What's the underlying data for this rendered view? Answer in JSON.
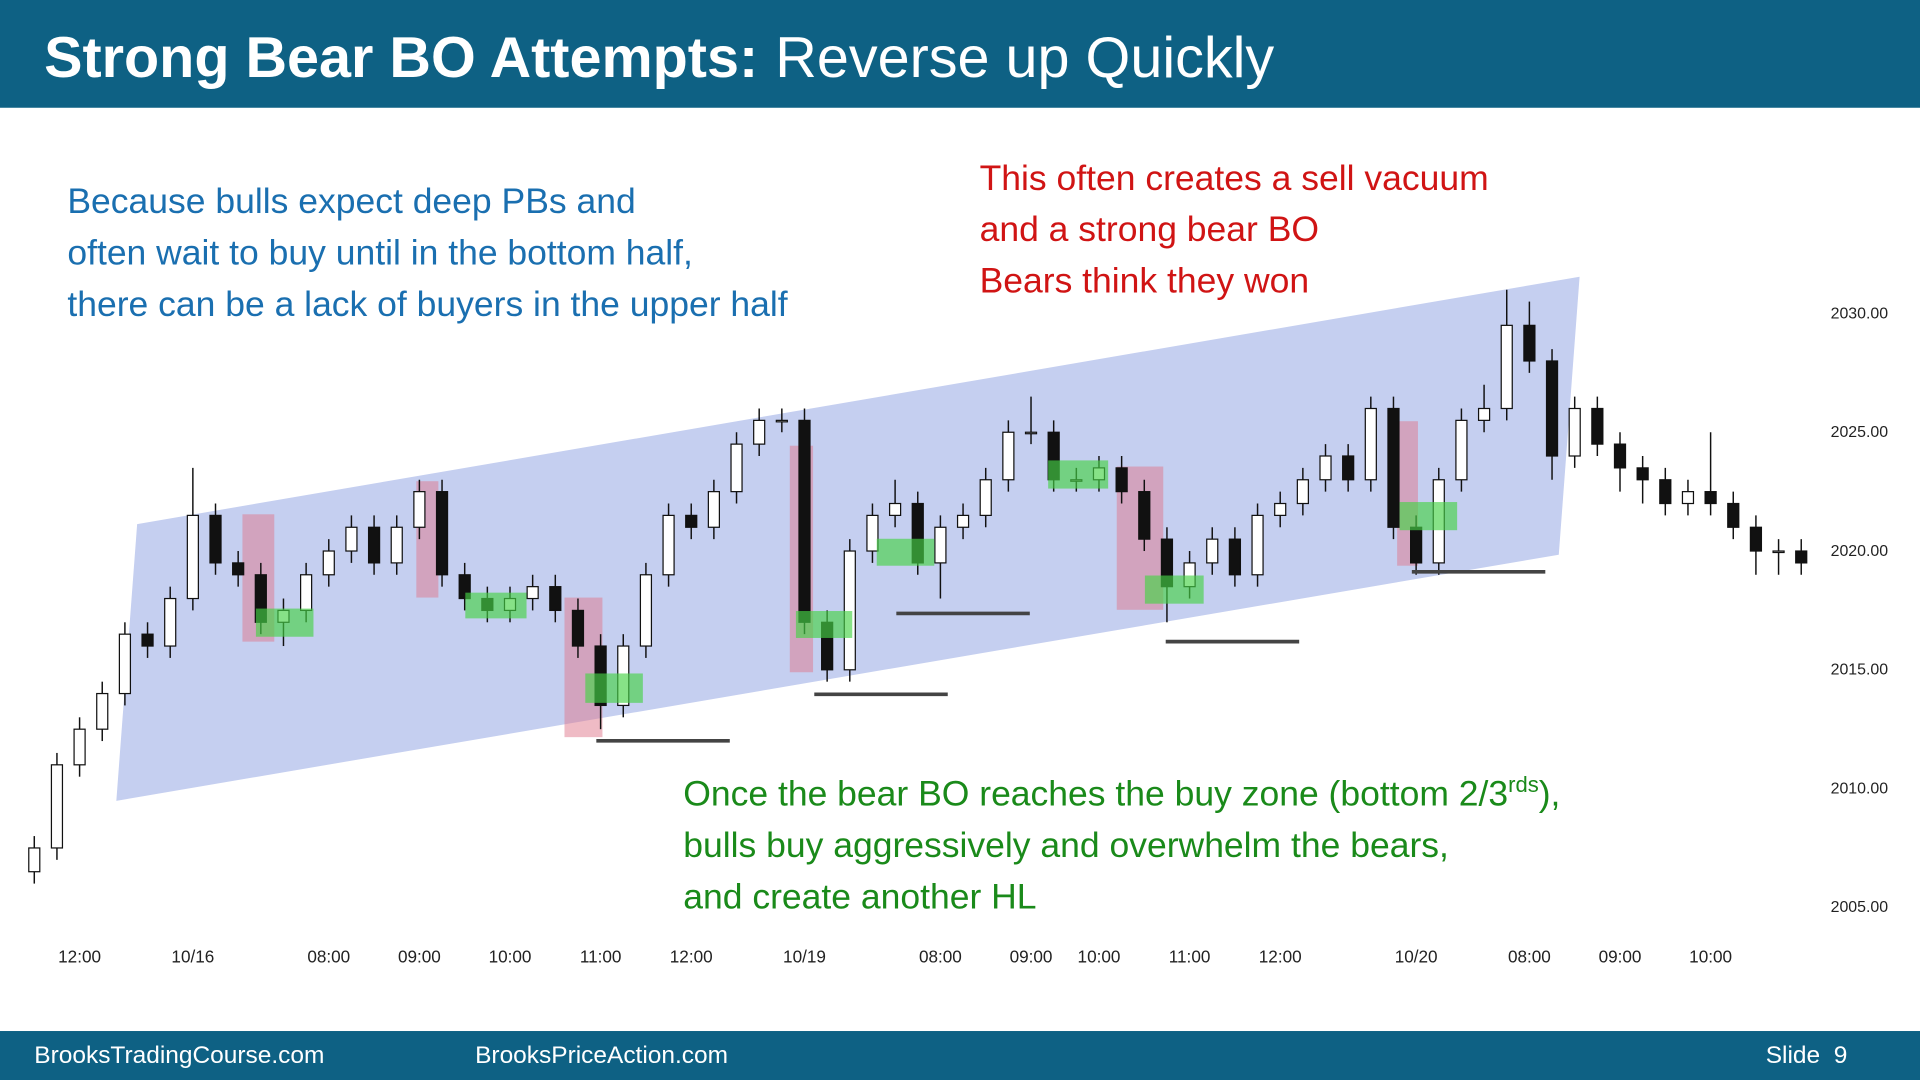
{
  "header": {
    "title_bold": "Strong Bear BO Attempts:",
    "title_rest": "Reverse up Quickly"
  },
  "annotations": {
    "blue": [
      "Because bulls expect deep PBs and",
      "often wait to buy until in the bottom half,",
      "there can be a lack of buyers in the upper half"
    ],
    "red": [
      "This often creates a sell vacuum",
      "and a strong bear BO",
      "Bears think they won"
    ],
    "green_first": {
      "text": "Once the bear BO reaches the buy zone (bottom 2/3",
      "sup": "rds",
      "tail": "),"
    },
    "green": [
      "bulls buy aggressively and overwhelm the bears,",
      "and create another HL"
    ]
  },
  "footer": {
    "left": "BrooksTradingCourse.com",
    "middle": "BrooksPriceAction.com",
    "right": "Slide  9"
  },
  "chart_data": {
    "type": "candlestick",
    "open": [
      2006.5,
      2007.5,
      2011,
      2012.5,
      2014,
      2016.5,
      2016,
      2018,
      2021.5,
      2019.5,
      2019,
      2017,
      2017.5,
      2019,
      2020,
      2021,
      2019.5,
      2021,
      2022.5,
      2019,
      2018,
      2017.5,
      2018,
      2018.5,
      2017.5,
      2016,
      2013.5,
      2016,
      2019,
      2021.5,
      2021,
      2022.5,
      2024.5,
      2025.5,
      2025.5,
      2017,
      2015,
      2020,
      2021.5,
      2022,
      2019.5,
      2021,
      2021.5,
      2023,
      2025,
      2025,
      2023,
      2023,
      2023.5,
      2022.5,
      2020.5,
      2018.5,
      2019.5,
      2020.5,
      2019,
      2021.5,
      2022,
      2023,
      2024,
      2023,
      2026,
      2021,
      2019.5,
      2023,
      2025.5,
      2026,
      2029.5,
      2028,
      2024,
      2026,
      2024.5,
      2023.5,
      2023,
      2022,
      2022.5,
      2022,
      2021,
      2020,
      2020
    ],
    "high": [
      2008,
      2011.5,
      2013,
      2014.5,
      2017,
      2017,
      2018.5,
      2023.5,
      2022,
      2020,
      2019.5,
      2018,
      2019.5,
      2020.5,
      2021.5,
      2021.5,
      2021.5,
      2023,
      2023,
      2019.5,
      2018.5,
      2018.5,
      2019,
      2019,
      2018,
      2016.5,
      2016.5,
      2019.5,
      2022,
      2022,
      2023,
      2025,
      2026,
      2026,
      2026,
      2017.5,
      2020.5,
      2022,
      2023,
      2022.5,
      2021.5,
      2022,
      2023.5,
      2025.5,
      2026.5,
      2025.5,
      2023.5,
      2024,
      2024,
      2023,
      2021,
      2020,
      2021,
      2021,
      2022,
      2022.5,
      2023.5,
      2024.5,
      2024.5,
      2026.5,
      2026.5,
      2021.5,
      2023.5,
      2026,
      2027,
      2031,
      2030.5,
      2028.5,
      2026.5,
      2026.5,
      2025,
      2024,
      2023.5,
      2023,
      2025,
      2022.5,
      2021.5,
      2020.5,
      2020.5
    ],
    "low": [
      2006,
      2007,
      2010.5,
      2012,
      2013.5,
      2015.5,
      2015.5,
      2017.5,
      2019,
      2018.5,
      2016.5,
      2016,
      2017,
      2018.5,
      2019.5,
      2019,
      2019,
      2020.5,
      2018.5,
      2017.5,
      2017,
      2017,
      2017.5,
      2017,
      2015.5,
      2012.5,
      2013,
      2015.5,
      2018.5,
      2020.5,
      2020.5,
      2022,
      2024,
      2025,
      2016.5,
      2014.5,
      2014.5,
      2019.5,
      2021,
      2019,
      2018,
      2020.5,
      2021,
      2022.5,
      2024.5,
      2022.5,
      2022.5,
      2022.5,
      2022,
      2020,
      2017,
      2018,
      2019,
      2018.5,
      2018.5,
      2021,
      2021.5,
      2022.5,
      2022.5,
      2022.5,
      2020.5,
      2019,
      2019,
      2022.5,
      2025,
      2025.5,
      2027.5,
      2023,
      2023.5,
      2024,
      2022.5,
      2022,
      2021.5,
      2021.5,
      2021.5,
      2020.5,
      2019,
      2019,
      2019
    ],
    "close": [
      2007.5,
      2011,
      2012.5,
      2014,
      2016.5,
      2016,
      2018,
      2021.5,
      2019.5,
      2019,
      2017,
      2017.5,
      2019,
      2020,
      2021,
      2019.5,
      2021,
      2022.5,
      2019,
      2018,
      2017.5,
      2018,
      2018.5,
      2017.5,
      2016,
      2013.5,
      2016,
      2019,
      2021.5,
      2021,
      2022.5,
      2024.5,
      2025.5,
      2025.5,
      2017,
      2015,
      2020,
      2021.5,
      2022,
      2019.5,
      2021,
      2021.5,
      2023,
      2025,
      2025,
      2023,
      2023,
      2023.5,
      2022.5,
      2020.5,
      2018.5,
      2019.5,
      2020.5,
      2019,
      2021.5,
      2022,
      2023,
      2024,
      2023,
      2026,
      2021,
      2019.5,
      2023,
      2025.5,
      2026,
      2029.5,
      2028,
      2024,
      2026,
      2024.5,
      2023.5,
      2023,
      2022,
      2022.5,
      2022,
      2021,
      2020,
      2020,
      2019.5
    ],
    "xticks": [
      {
        "value": 2,
        "label": "12:00"
      },
      {
        "value": 7,
        "label": "10/16"
      },
      {
        "value": 13,
        "label": "08:00"
      },
      {
        "value": 17,
        "label": "09:00"
      },
      {
        "value": 21,
        "label": "10:00"
      },
      {
        "value": 25,
        "label": "11:00"
      },
      {
        "value": 29,
        "label": "12:00"
      },
      {
        "value": 34,
        "label": "10/19"
      },
      {
        "value": 40,
        "label": "08:00"
      },
      {
        "value": 44,
        "label": "09:00"
      },
      {
        "value": 47,
        "label": "10:00"
      },
      {
        "value": 51,
        "label": "11:00"
      },
      {
        "value": 55,
        "label": "12:00"
      },
      {
        "value": 61,
        "label": "10/20"
      },
      {
        "value": 66,
        "label": "08:00"
      },
      {
        "value": 70,
        "label": "09:00"
      },
      {
        "value": 74,
        "label": "10:00"
      }
    ],
    "ylim": [
      2002,
      2032
    ],
    "yticks": [
      {
        "value": 2005,
        "label": "2005.00"
      },
      {
        "value": 2010,
        "label": "2010.00"
      },
      {
        "value": 2015,
        "label": "2015.00"
      },
      {
        "value": 2020,
        "label": "2020.00"
      },
      {
        "value": 2025,
        "label": "2025.00"
      },
      {
        "value": 2030,
        "label": "2030.00"
      }
    ],
    "bull_color": "#ffffff",
    "bear_color": "#111111"
  }
}
